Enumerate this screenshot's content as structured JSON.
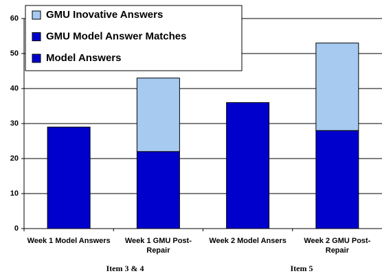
{
  "chart_data": {
    "type": "stacked_bar",
    "categories": [
      "Week 1 Model Answers",
      "Week 1 GMU Post-Repair",
      "Week 2 Model Ansers",
      "Week 2 GMU Post-Repair"
    ],
    "series": [
      {
        "name": "Model Answers",
        "color": "#0000cc",
        "values": [
          29,
          null,
          36,
          null
        ]
      },
      {
        "name": "GMU Model Answer Matches",
        "color": "#0000cc",
        "values": [
          null,
          22,
          null,
          28
        ]
      },
      {
        "name": "GMU Inovative Answers",
        "color": "#a6caf0",
        "values": [
          null,
          21,
          null,
          25
        ]
      }
    ],
    "group_labels": [
      "Item 3 & 4",
      "Item 5"
    ],
    "ylim": [
      0,
      60
    ],
    "yticks": [
      0,
      10,
      20,
      30,
      40,
      50,
      60
    ],
    "grid": true,
    "legend": "top-left"
  }
}
